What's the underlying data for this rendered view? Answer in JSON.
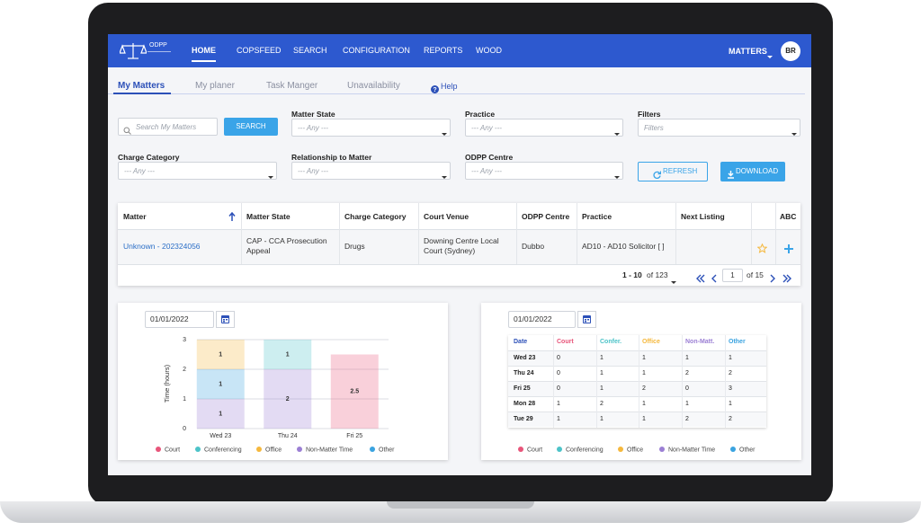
{
  "nav": {
    "logo": "ODPP",
    "items": [
      "HOME",
      "COPSFEED",
      "SEARCH",
      "CONFIGURATION",
      "REPORTS",
      "WOOD"
    ],
    "menu": "MATTERS",
    "avatar": "BR"
  },
  "tabs": [
    "My Matters",
    "My planer",
    "Task Manger",
    "Unavailability",
    "Help"
  ],
  "search": {
    "placeholder": "Search My Matters",
    "button": "SEARCH"
  },
  "filters": [
    {
      "label": "Matter State",
      "placeholder": "--- Any ---"
    },
    {
      "label": "Practice",
      "placeholder": "--- Any ---"
    },
    {
      "label": "Filters",
      "placeholder": "Filters"
    },
    {
      "label": "Charge Category",
      "placeholder": "--- Any ---"
    },
    {
      "label": "Relationship to Matter",
      "placeholder": "--- Any ---"
    },
    {
      "label": "ODPP Centre",
      "placeholder": "--- Any ---"
    }
  ],
  "buttons": {
    "refresh": "REFRESH",
    "download": "DOWNLOAD"
  },
  "table": {
    "headers": [
      "Matter",
      "Matter State",
      "Charge Category",
      "Court Venue",
      "ODPP Centre",
      "Practice",
      "Next Listing",
      "ABC"
    ],
    "rows": [
      [
        "Unknown - 202324056",
        "CAP - CCA Prosecution Appeal",
        "Drugs",
        "Downing Centre Local Court (Sydney)",
        "Dubbo",
        "AD10 - AD10 Solicitor [ ]"
      ]
    ]
  },
  "pagination": {
    "range": "1 - 10",
    "total": "of 123",
    "page": "1",
    "pages": "of 15"
  },
  "chart_panel": {
    "date": "01/01/2022"
  },
  "chart_data": {
    "type": "bar",
    "stacked": true,
    "y_label": "Time (hours)",
    "categories": [
      "Wed 23",
      "Thu 24",
      "Fri 25"
    ],
    "series": [
      {
        "name": "Court",
        "color": "#e8557a",
        "values": [
          null,
          null,
          2.5
        ]
      },
      {
        "name": "Conferencing",
        "color": "#4cc3c8",
        "values": [
          null,
          1,
          null
        ]
      },
      {
        "name": "Office",
        "color": "#f5b83d",
        "values": [
          1,
          null,
          null
        ]
      },
      {
        "name": "Non-Matter Time",
        "color": "#9b7fd4",
        "values": [
          1,
          2,
          null
        ]
      },
      {
        "name": "Other",
        "color": "#3aa3e0",
        "values": [
          1,
          null,
          null
        ]
      }
    ],
    "ylim": [
      0,
      3
    ],
    "yticks": [
      0,
      1,
      2,
      3
    ],
    "grid": true
  },
  "planner": {
    "date": "01/01/2022",
    "headers": [
      "Date",
      "Court",
      "Confer.",
      "Office",
      "Non-Matt.",
      "Other"
    ],
    "rows": [
      [
        "Wed 23",
        "0",
        "1",
        "1",
        "1",
        "1"
      ],
      [
        "Thu 24",
        "0",
        "1",
        "1",
        "2",
        "2"
      ],
      [
        "Fri 25",
        "0",
        "1",
        "2",
        "0",
        "3"
      ],
      [
        "Mon 28",
        "1",
        "2",
        "1",
        "1",
        "1"
      ],
      [
        "Tue 29",
        "1",
        "1",
        "1",
        "2",
        "2"
      ]
    ]
  }
}
